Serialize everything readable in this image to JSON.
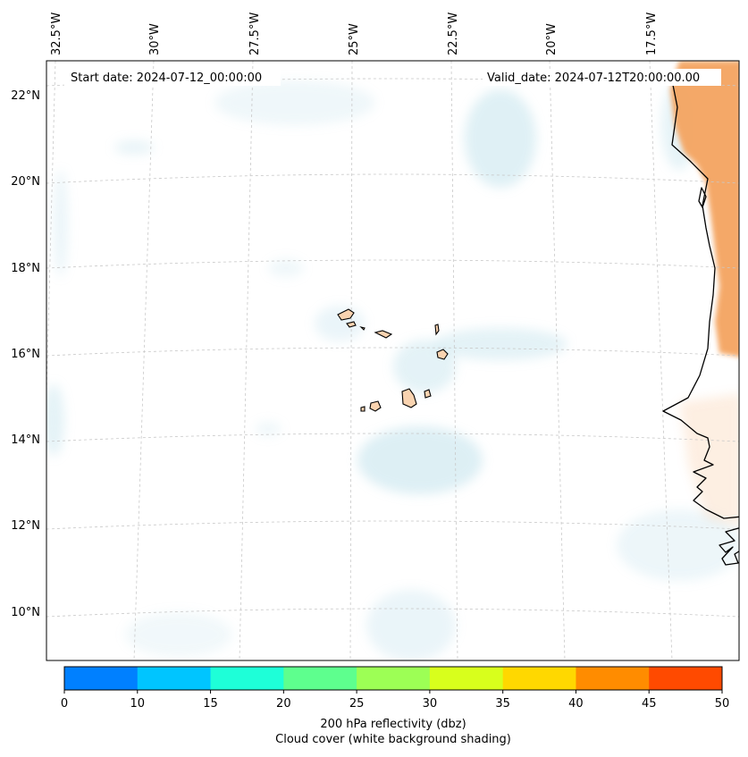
{
  "header": {
    "start_date": "Start date: 2024-07-12_00:00:00",
    "valid_date": "Valid_date: 2024-07-12T20:00:00.00"
  },
  "map": {
    "lon_labels": [
      "32.5°W",
      "30°W",
      "27.5°W",
      "25°W",
      "22.5°W",
      "20°W",
      "17.5°W"
    ],
    "lat_labels": [
      "22°N",
      "20°N",
      "18°N",
      "16°N",
      "14°N",
      "12°N",
      "10°N"
    ],
    "colors": {
      "cloud_shading": "#add8e6",
      "land_orange": "#f4a460",
      "island_fill": "#f9d3b0"
    }
  },
  "colorbar": {
    "ticks": [
      "0",
      "10",
      "15",
      "20",
      "25",
      "30",
      "35",
      "40",
      "45",
      "50"
    ],
    "colors": [
      "#0080ff",
      "#00c5ff",
      "#1effd8",
      "#5eff8e",
      "#9dff55",
      "#d8ff1c",
      "#ffd800",
      "#ff8c00",
      "#ff4a00"
    ],
    "label_line1": "200 hPa reflectivity (dbz)",
    "label_line2": "Cloud cover (white background shading)"
  }
}
